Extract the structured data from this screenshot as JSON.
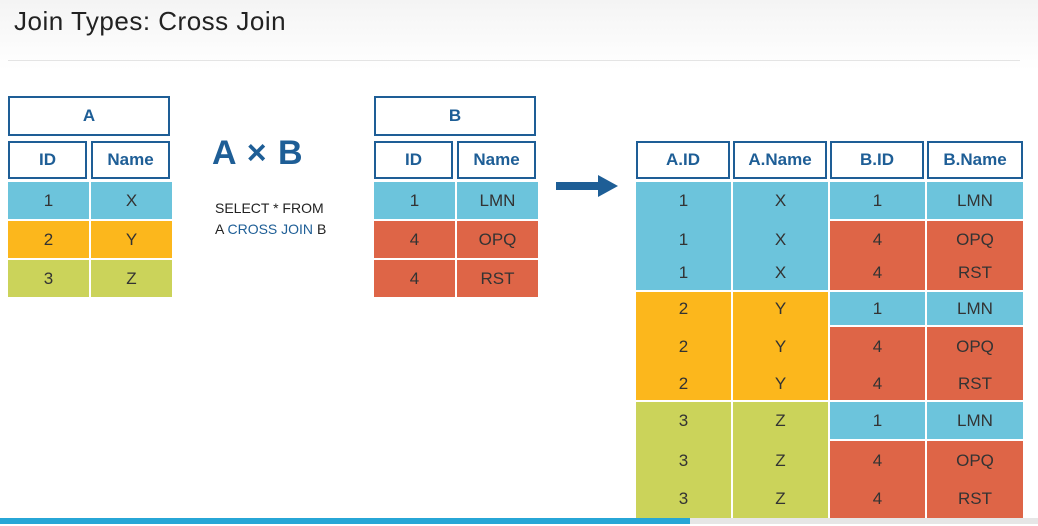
{
  "slide": {
    "title": "Join Types: Cross Join"
  },
  "table_a": {
    "name": "A",
    "columns": [
      "ID",
      "Name"
    ],
    "rows": [
      {
        "id": "1",
        "name": "X",
        "color": "#6cc4dc"
      },
      {
        "id": "2",
        "name": "Y",
        "color": "#fcb71c"
      },
      {
        "id": "3",
        "name": "Z",
        "color": "#cbd35a"
      }
    ]
  },
  "table_b": {
    "name": "B",
    "columns": [
      "ID",
      "Name"
    ],
    "rows": [
      {
        "id": "1",
        "name": "LMN",
        "color": "#6cc4dc"
      },
      {
        "id": "4",
        "name": "OPQ",
        "color": "#de6547"
      },
      {
        "id": "4",
        "name": "RST",
        "color": "#de6547"
      }
    ]
  },
  "operation": {
    "formula": "A × B",
    "sql_line1": "SELECT * FROM",
    "sql_line2_prefix": "A",
    "sql_keyword": "CROSS JOIN",
    "sql_line2_suffix": "B",
    "arrow_icon": "right-arrow-icon"
  },
  "result": {
    "columns": [
      "A.ID",
      "A.Name",
      "B.ID",
      "B.Name"
    ],
    "rows": [
      [
        "1",
        "X",
        "1",
        "LMN"
      ],
      [
        "1",
        "X",
        "4",
        "OPQ"
      ],
      [
        "1",
        "X",
        "4",
        "RST"
      ],
      [
        "2",
        "Y",
        "1",
        "LMN"
      ],
      [
        "2",
        "Y",
        "4",
        "OPQ"
      ],
      [
        "2",
        "Y",
        "4",
        "RST"
      ],
      [
        "3",
        "Z",
        "1",
        "LMN"
      ],
      [
        "3",
        "Z",
        "4",
        "OPQ"
      ],
      [
        "3",
        "Z",
        "4",
        "RST"
      ]
    ]
  },
  "colors": {
    "header_border": "#1e5e96",
    "blue": "#6cc4dc",
    "orange": "#fcb71c",
    "green": "#cbd35a",
    "red": "#de6547"
  },
  "video_progress": {
    "fraction": 0.665
  }
}
